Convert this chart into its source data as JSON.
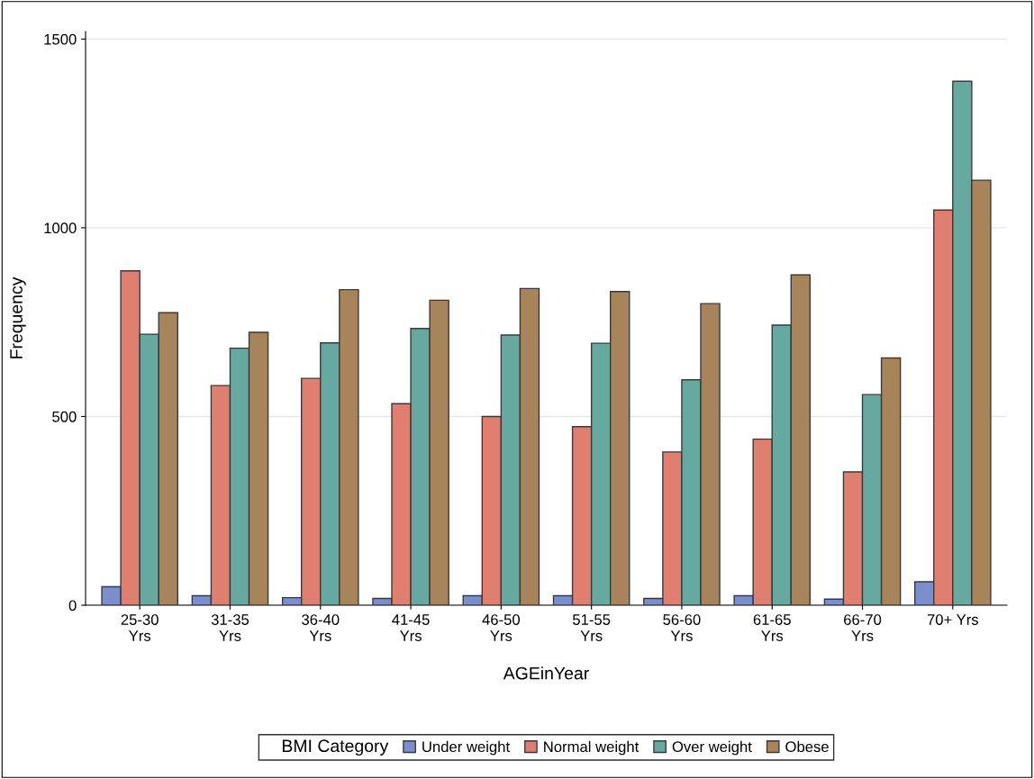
{
  "chart_data": {
    "type": "bar",
    "xlabel": "AGEinYear",
    "ylabel": "Frequency",
    "legend_title": "BMI Category",
    "categories": [
      "25-30\nYrs",
      "31-35\nYrs",
      "36-40\nYrs",
      "41-45\nYrs",
      "46-50\nYrs",
      "51-55\nYrs",
      "56-60\nYrs",
      "61-65\nYrs",
      "66-70\nYrs",
      "70+ Yrs"
    ],
    "series": [
      {
        "name": "Under weight",
        "color": "#7b8fcf",
        "values": [
          49,
          25,
          20,
          18,
          25,
          25,
          18,
          25,
          16,
          62
        ]
      },
      {
        "name": "Normal weight",
        "color": "#e07f70",
        "values": [
          886,
          582,
          601,
          534,
          500,
          473,
          406,
          440,
          353,
          1047
        ]
      },
      {
        "name": "Over weight",
        "color": "#66a9a0",
        "values": [
          718,
          681,
          695,
          733,
          716,
          694,
          597,
          742,
          558,
          1388
        ]
      },
      {
        "name": "Obese",
        "color": "#a8845b",
        "values": [
          775,
          723,
          836,
          808,
          839,
          831,
          799,
          875,
          655,
          1126
        ]
      }
    ],
    "ylim": [
      0,
      1520
    ],
    "yticks": [
      0,
      500,
      1000,
      1500
    ],
    "grid": "y",
    "legend": "bottom"
  }
}
